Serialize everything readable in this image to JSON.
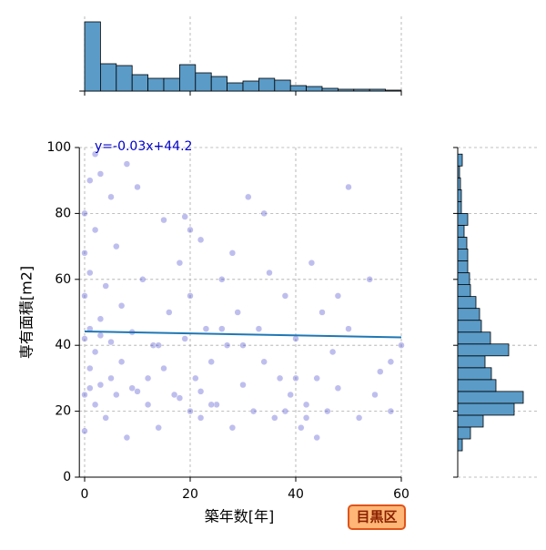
{
  "chart_data": {
    "type": "scatter",
    "xlabel": "築年数[年]",
    "ylabel": "専有面積[m2]",
    "annotation": "y=-0.03x+44.2",
    "badge": "目黒区",
    "regression": {
      "slope": -0.03,
      "intercept": 44.2,
      "color": "#1f77b4"
    },
    "point_color": "#2828c8",
    "hist_color": "#5a9bc8",
    "grid": true,
    "xlim": [
      -1,
      60
    ],
    "ylim": [
      0,
      100
    ],
    "xticks": [
      0,
      20,
      40,
      60
    ],
    "yticks": [
      0,
      20,
      40,
      60,
      80,
      100
    ],
    "x": [
      0,
      0,
      0,
      0,
      0,
      0,
      1,
      1,
      1,
      1,
      2,
      2,
      2,
      3,
      3,
      3,
      4,
      4,
      5,
      5,
      6,
      6,
      7,
      7,
      8,
      9,
      10,
      10,
      11,
      12,
      13,
      14,
      15,
      15,
      16,
      17,
      18,
      19,
      19,
      20,
      20,
      21,
      22,
      22,
      23,
      24,
      25,
      26,
      27,
      28,
      29,
      30,
      31,
      32,
      33,
      34,
      35,
      36,
      37,
      38,
      39,
      40,
      41,
      42,
      43,
      44,
      45,
      46,
      47,
      48,
      50,
      52,
      54,
      56,
      58,
      60,
      2,
      5,
      8,
      12,
      18,
      22,
      28,
      34,
      40,
      44,
      50,
      55,
      1,
      3,
      9,
      14,
      24,
      30,
      38,
      42,
      48,
      58,
      20,
      26
    ],
    "values": [
      14,
      25,
      42,
      55,
      68,
      80,
      33,
      45,
      62,
      90,
      22,
      38,
      75,
      28,
      48,
      92,
      18,
      58,
      30,
      41,
      25,
      70,
      35,
      52,
      12,
      44,
      26,
      88,
      60,
      22,
      40,
      15,
      33,
      78,
      50,
      25,
      65,
      42,
      79,
      20,
      55,
      30,
      18,
      72,
      45,
      35,
      22,
      60,
      40,
      15,
      50,
      28,
      85,
      20,
      45,
      35,
      62,
      18,
      30,
      55,
      25,
      42,
      15,
      22,
      65,
      30,
      50,
      20,
      38,
      27,
      45,
      18,
      60,
      32,
      20,
      40,
      98,
      85,
      95,
      30,
      24,
      26,
      68,
      80,
      30,
      12,
      88,
      25,
      27,
      43,
      27,
      40,
      22,
      40,
      20,
      18,
      55,
      35,
      75,
      45
    ],
    "x_hist": {
      "bins": [
        0,
        3,
        6,
        9,
        12,
        15,
        18,
        21,
        24,
        27,
        30,
        33,
        36,
        39,
        42,
        45,
        48,
        51,
        54,
        57,
        60
      ],
      "counts": [
        380,
        150,
        140,
        90,
        70,
        70,
        145,
        100,
        80,
        45,
        55,
        70,
        60,
        30,
        25,
        15,
        10,
        10,
        10,
        5
      ],
      "lim": [
        0,
        380
      ]
    },
    "y_hist": {
      "bins": [
        8,
        11.6,
        15.2,
        18.8,
        22.4,
        26,
        29.6,
        33.2,
        36.8,
        40.4,
        44,
        47.6,
        51.2,
        54.8,
        58.4,
        62,
        65.6,
        69.2,
        72.8,
        76.4,
        80,
        83.6,
        87.2,
        90.8,
        94.4,
        98
      ],
      "counts": [
        25,
        70,
        140,
        310,
        360,
        210,
        185,
        150,
        280,
        180,
        130,
        120,
        100,
        70,
        65,
        55,
        55,
        50,
        35,
        55,
        20,
        20,
        15,
        10,
        25
      ],
      "lim": [
        0,
        380
      ]
    }
  }
}
